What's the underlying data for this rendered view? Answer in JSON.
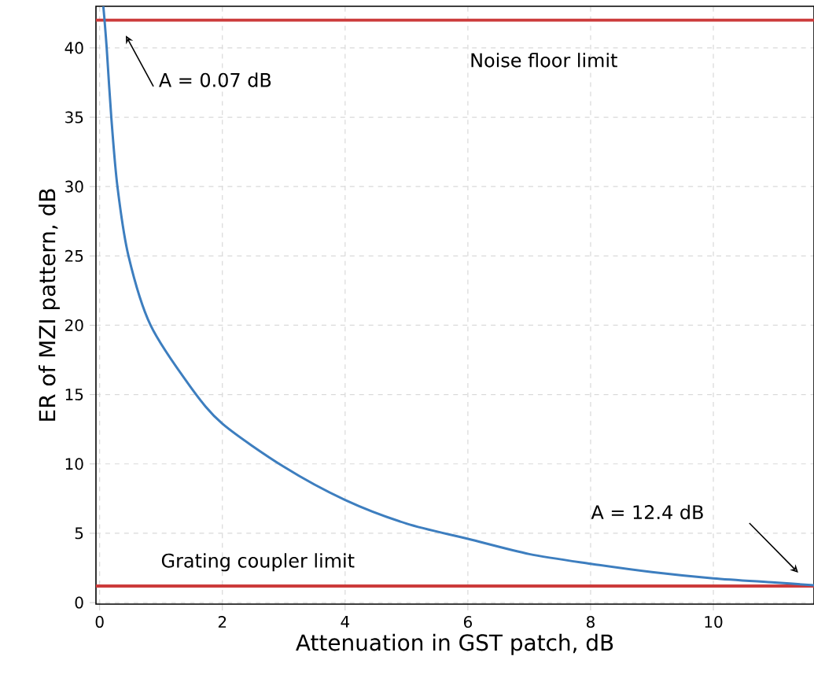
{
  "chart_data": {
    "type": "line",
    "xlabel": "Attenuation in GST patch, dB",
    "ylabel": "ER of MZI pattern, dB",
    "x": [
      0.06,
      0.08,
      0.115,
      0.19,
      0.29,
      0.47,
      0.83,
      1.49,
      2,
      3,
      4,
      5,
      6,
      7,
      8,
      9,
      10,
      11,
      11.64
    ],
    "series": [
      {
        "color": "#3d7ebf",
        "values": [
          43,
          42,
          40,
          35,
          30,
          25,
          20,
          15.5,
          12.9,
          9.8,
          7.4,
          5.7,
          4.6,
          3.5,
          2.8,
          2.2,
          1.75,
          1.45,
          1.25
        ]
      }
    ],
    "xlim": [
      -0.06,
      11.64
    ],
    "ylim": [
      -0.11,
      43
    ],
    "xticks": [
      0,
      2,
      4,
      6,
      8,
      10
    ],
    "yticks": [
      0,
      5,
      10,
      15,
      20,
      25,
      30,
      35,
      40
    ],
    "ref_lines": [
      {
        "axis": "y",
        "value": 42,
        "label": "Noise floor limit",
        "color": "#cc3b3b"
      },
      {
        "axis": "y",
        "value": 1.2,
        "label": "Grating coupler limit",
        "color": "#cc3b3b"
      }
    ],
    "annotations": [
      "A = 0.07 dB",
      "A = 12.4 dB"
    ],
    "grid": true,
    "marker": "none",
    "line_style": "solid"
  }
}
